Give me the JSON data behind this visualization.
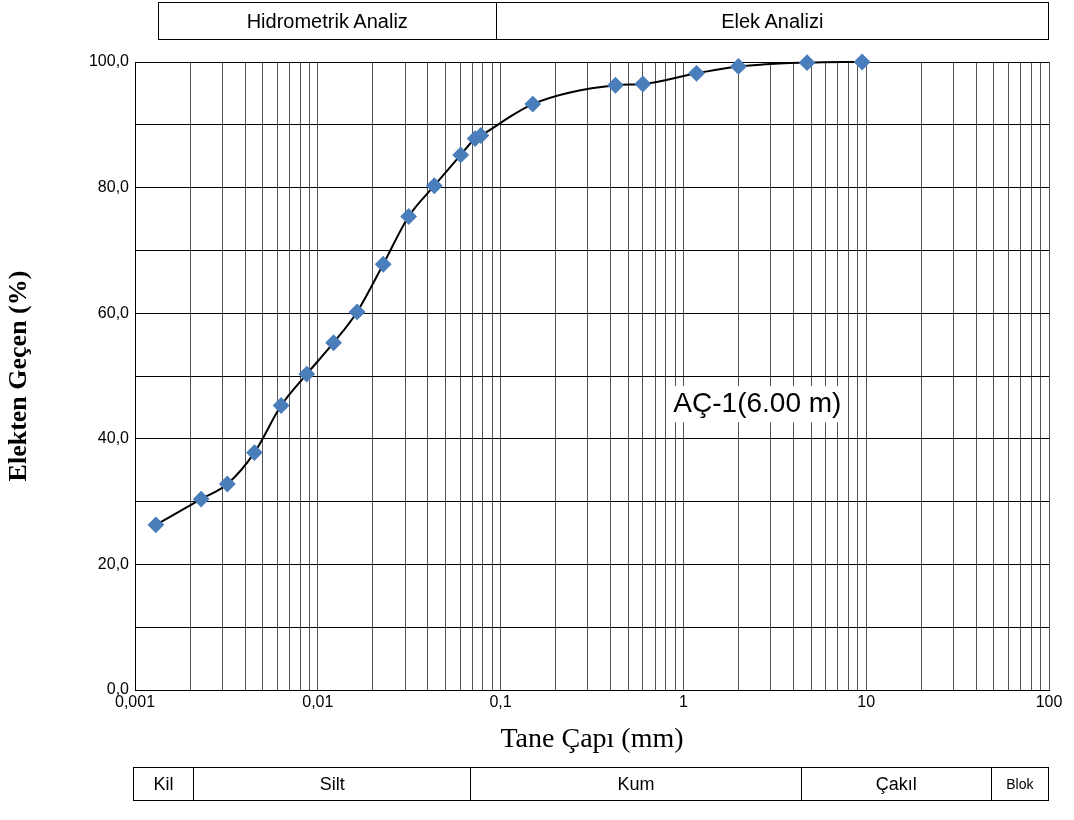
{
  "chart_data": {
    "type": "line",
    "xlabel": "Tane Çapı (mm)",
    "ylabel": "Elekten Geçen (%)",
    "log": "x",
    "grid": true,
    "marker": "diamond",
    "line_style": "solid",
    "legend": false,
    "annotations": [
      "Hidrometrik Analiz",
      "Elek Analizi",
      "AÇ-1(6.00 m)",
      "Kil",
      "Silt",
      "Kum",
      "Çakıl",
      "Blok"
    ],
    "x": [
      0.0013,
      0.0023,
      0.0032,
      0.0045,
      0.0063,
      0.0087,
      0.0122,
      0.0164,
      0.0228,
      0.0314,
      0.0434,
      0.0605,
      0.0725,
      0.078,
      0.15,
      0.425,
      0.6,
      1.18,
      2.0,
      4.75,
      9.5
    ],
    "series": [
      {
        "color": "#4a7ebb",
        "values": [
          26.3,
          30.4,
          32.8,
          37.8,
          45.3,
          50.3,
          55.3,
          60.2,
          67.8,
          75.4,
          80.3,
          85.2,
          87.8,
          88.3,
          93.3,
          96.3,
          96.5,
          98.2,
          99.3,
          99.9,
          100
        ]
      }
    ],
    "xlim": [
      0.001,
      100
    ],
    "ylim": [
      0,
      100
    ],
    "xticks": [
      {
        "value": 0.001,
        "label": "0,001"
      },
      {
        "value": 0.002,
        "label": null
      },
      {
        "value": 0.003,
        "label": null
      },
      {
        "value": 0.004,
        "label": null
      },
      {
        "value": 0.005,
        "label": null
      },
      {
        "value": 0.006,
        "label": null
      },
      {
        "value": 0.007,
        "label": null
      },
      {
        "value": 0.008,
        "label": null
      },
      {
        "value": 0.009,
        "label": null
      },
      {
        "value": 0.01,
        "label": "0,01"
      },
      {
        "value": 0.02,
        "label": null
      },
      {
        "value": 0.03,
        "label": null
      },
      {
        "value": 0.04,
        "label": null
      },
      {
        "value": 0.05,
        "label": null
      },
      {
        "value": 0.06,
        "label": null
      },
      {
        "value": 0.07,
        "label": null
      },
      {
        "value": 0.08,
        "label": null
      },
      {
        "value": 0.09,
        "label": null
      },
      {
        "value": 0.1,
        "label": "0,1"
      },
      {
        "value": 0.2,
        "label": null
      },
      {
        "value": 0.3,
        "label": null
      },
      {
        "value": 0.4,
        "label": null
      },
      {
        "value": 0.5,
        "label": null
      },
      {
        "value": 0.6,
        "label": null
      },
      {
        "value": 0.7,
        "label": null
      },
      {
        "value": 0.8,
        "label": null
      },
      {
        "value": 0.9,
        "label": null
      },
      {
        "value": 1,
        "label": "1"
      },
      {
        "value": 2,
        "label": null
      },
      {
        "value": 3,
        "label": null
      },
      {
        "value": 4,
        "label": null
      },
      {
        "value": 5,
        "label": null
      },
      {
        "value": 6,
        "label": null
      },
      {
        "value": 7,
        "label": null
      },
      {
        "value": 8,
        "label": null
      },
      {
        "value": 9,
        "label": null
      },
      {
        "value": 10,
        "label": "10"
      },
      {
        "value": 20,
        "label": null
      },
      {
        "value": 30,
        "label": null
      },
      {
        "value": 40,
        "label": null
      },
      {
        "value": 50,
        "label": null
      },
      {
        "value": 60,
        "label": null
      },
      {
        "value": 70,
        "label": null
      },
      {
        "value": 80,
        "label": null
      },
      {
        "value": 90,
        "label": null
      },
      {
        "value": 100,
        "label": "100"
      }
    ],
    "yticks": [
      {
        "value": 0,
        "label": "0,0"
      },
      {
        "value": 10,
        "label": null
      },
      {
        "value": 20,
        "label": "20,0"
      },
      {
        "value": 30,
        "label": null
      },
      {
        "value": 40,
        "label": "40,0"
      },
      {
        "value": 50,
        "label": null
      },
      {
        "value": 60,
        "label": "60,0"
      },
      {
        "value": 70,
        "label": null
      },
      {
        "value": 80,
        "label": "80,0"
      },
      {
        "value": 90,
        "label": null
      },
      {
        "value": 100,
        "label": "100,0"
      }
    ]
  }
}
